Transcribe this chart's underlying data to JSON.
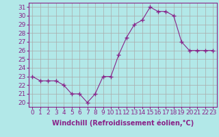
{
  "x": [
    0,
    1,
    2,
    3,
    4,
    5,
    6,
    7,
    8,
    9,
    10,
    11,
    12,
    13,
    14,
    15,
    16,
    17,
    18,
    19,
    20,
    21,
    22,
    23
  ],
  "y": [
    23,
    22.5,
    22.5,
    22.5,
    22,
    21,
    21,
    20,
    21,
    23,
    23,
    25.5,
    27.5,
    29,
    29.5,
    31,
    30.5,
    30.5,
    30,
    27,
    26,
    26,
    26,
    26
  ],
  "line_color": "#882288",
  "marker": "+",
  "marker_size": 4,
  "bg_color": "#b2e8e8",
  "grid_color": "#aaaaaa",
  "xlabel": "Windchill (Refroidissement éolien,°C)",
  "xlabel_fontsize": 7,
  "yticks": [
    20,
    21,
    22,
    23,
    24,
    25,
    26,
    27,
    28,
    29,
    30,
    31
  ],
  "xticks": [
    0,
    1,
    2,
    3,
    4,
    5,
    6,
    7,
    8,
    9,
    10,
    11,
    12,
    13,
    14,
    15,
    16,
    17,
    18,
    19,
    20,
    21,
    22,
    23
  ],
  "xlim": [
    -0.5,
    23.5
  ],
  "ylim": [
    19.5,
    31.5
  ],
  "tick_fontsize": 6.5
}
